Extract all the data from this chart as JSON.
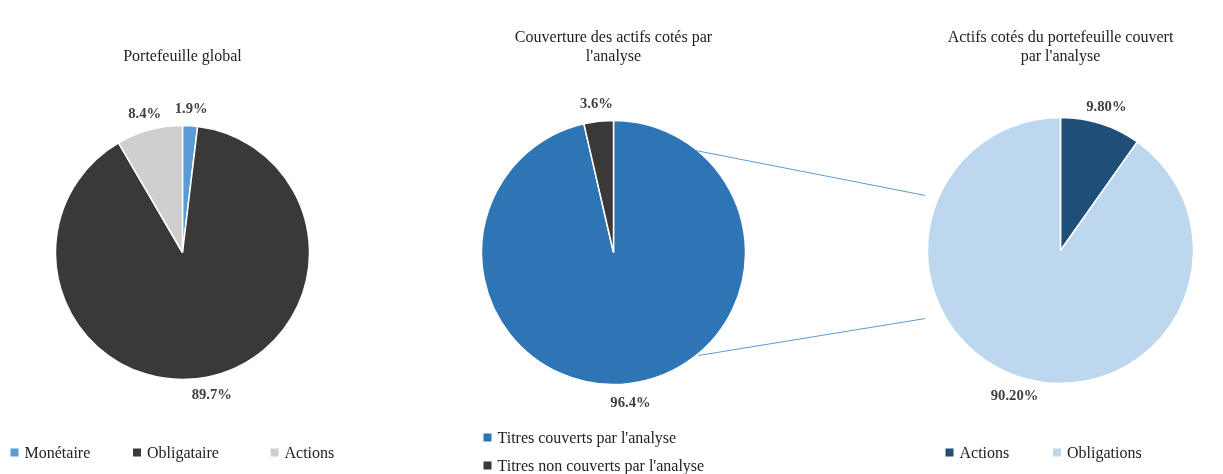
{
  "chart_data": [
    {
      "type": "pie",
      "title": "Portefeuille global",
      "categories": [
        "Monétaire",
        "Obligataire",
        "Actions"
      ],
      "values": [
        1.9,
        89.7,
        8.4
      ],
      "colors": [
        "#5b9bd5",
        "#3b3838",
        "#d0cece"
      ],
      "value_labels": [
        "1.9%",
        "89.7%",
        "8.4%"
      ],
      "legend": "bottom"
    },
    {
      "type": "pie",
      "title": "Couverture des actifs cotés par l'analyse",
      "categories": [
        "Titres couverts par l'analyse",
        "Titres non couverts par l'analyse"
      ],
      "values": [
        96.4,
        3.6
      ],
      "colors": [
        "#2e75b6",
        "#3b3838"
      ],
      "value_labels": [
        "96.4%",
        "3.6%"
      ],
      "legend": "bottom"
    },
    {
      "type": "pie",
      "title": "Actifs cotés du portefeuille couvert par l'analyse",
      "categories": [
        "Actions",
        "Obligations"
      ],
      "values": [
        9.8,
        90.2
      ],
      "colors": [
        "#1f4e79",
        "#bdd7ee"
      ],
      "value_labels": [
        "9.80%",
        "90.20%"
      ],
      "legend": "bottom"
    }
  ]
}
